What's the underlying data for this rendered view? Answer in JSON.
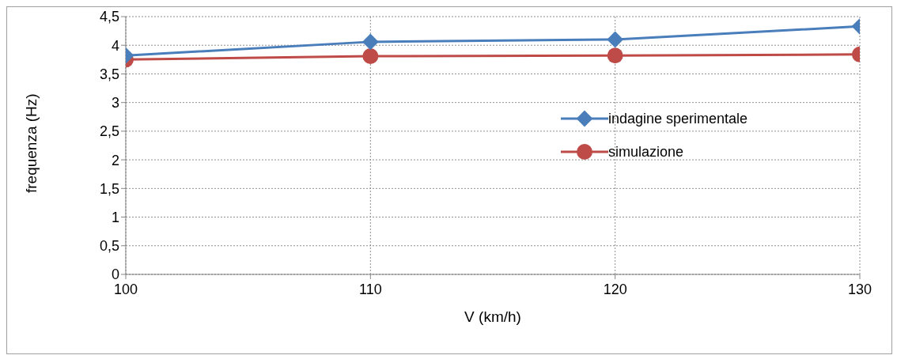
{
  "chart_data": {
    "type": "line",
    "xlabel": "V (km/h)",
    "ylabel": "frequenza (Hz)",
    "x": [
      100,
      110,
      120,
      130
    ],
    "series": [
      {
        "name": "indagine sperimentale",
        "color": "#4a7ebb",
        "marker": "diamond",
        "values": [
          3.82,
          4.06,
          4.1,
          4.33
        ]
      },
      {
        "name": "simulazione",
        "color": "#be4b48",
        "marker": "circle",
        "values": [
          3.75,
          3.81,
          3.82,
          3.84
        ]
      }
    ],
    "xlim": [
      100,
      130
    ],
    "xticks": [
      100,
      110,
      120,
      130
    ],
    "ylim": [
      0,
      4.5
    ],
    "yticks": [
      0,
      {
        "value": 0.5,
        "label": "0,5"
      },
      1,
      {
        "value": 1.5,
        "label": "1,5"
      },
      2,
      {
        "value": 2.5,
        "label": "2,5"
      },
      3,
      {
        "value": 3.5,
        "label": "3,5"
      },
      4,
      {
        "value": 4.5,
        "label": "4,5"
      }
    ],
    "grid": true,
    "legend": "right",
    "line_style": "solid"
  }
}
